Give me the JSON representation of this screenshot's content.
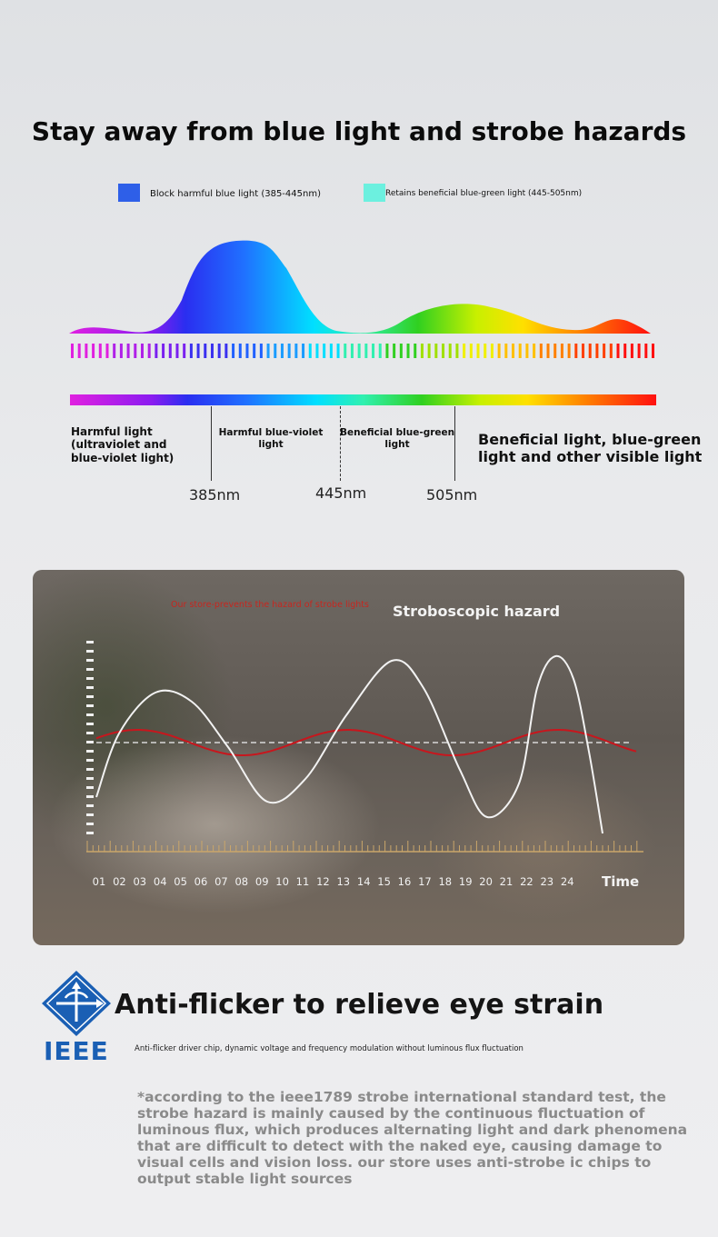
{
  "title": "Stay away from blue light and strobe hazards",
  "legend": [
    {
      "label": "Block harmful blue light (385-445nm)",
      "color": "#2e5fe8"
    },
    {
      "label": "Retains beneficial blue-green light (445-505nm)",
      "color": "#6cf0df"
    }
  ],
  "spectrum": {
    "regions": [
      {
        "label": "Harmful light\n(ultraviolet and\nblue-violet light)"
      },
      {
        "label": "Harmful blue-violet\nlight"
      },
      {
        "label": "Beneficial blue-green\nlight"
      },
      {
        "label": "Beneficial light, blue-green\nlight and other visible light"
      }
    ],
    "markers": [
      "385nm",
      "445nm",
      "505nm"
    ]
  },
  "strobe_chart": {
    "note": "Our store-prevents the hazard of strobe lights",
    "title": "Stroboscopic hazard",
    "x_ticks": [
      "01",
      "02",
      "03",
      "04",
      "05",
      "06",
      "07",
      "08",
      "09",
      "10",
      "11",
      "12",
      "13",
      "14",
      "15",
      "16",
      "17",
      "18",
      "19",
      "20",
      "21",
      "22",
      "23",
      "24"
    ],
    "x_label": "Time",
    "colors": {
      "hazard_wave": "#f2f2f2",
      "store_wave": "#c8161d",
      "baseline": "#d8d8d8"
    }
  },
  "ieee": {
    "logo_text": "IEEE",
    "title": "Anti-flicker to relieve eye strain",
    "subtitle": "Anti-flicker driver chip, dynamic voltage and frequency modulation without luminous flux fluctuation",
    "brand_color": "#1a5fb4"
  },
  "footnote": "*according to the ieee1789 strobe international standard test, the strobe hazard is mainly caused by the continuous fluctuation of luminous flux, which produces alternating light and dark phenomena that are difficult to detect with the naked eye, causing damage to visual cells and vision loss. our store uses anti-strobe ic chips to output stable light sources"
}
